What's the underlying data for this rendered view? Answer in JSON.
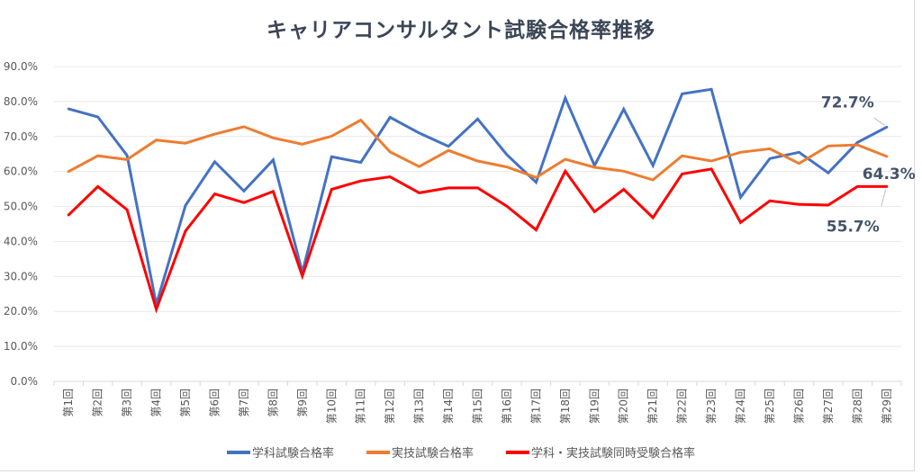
{
  "chart_data": {
    "type": "line",
    "title": "キャリアコンサルタント試験合格率推移",
    "xlabel": "",
    "ylabel": "",
    "ylim": [
      0,
      90
    ],
    "yticks": [
      "0.0%",
      "10.0%",
      "20.0%",
      "30.0%",
      "40.0%",
      "50.0%",
      "60.0%",
      "70.0%",
      "80.0%",
      "90.0%"
    ],
    "ytick_values": [
      0,
      10,
      20,
      30,
      40,
      50,
      60,
      70,
      80,
      90
    ],
    "grid": true,
    "legend_position": "bottom",
    "categories": [
      "第1回",
      "第2回",
      "第3回",
      "第4回",
      "第5回",
      "第6回",
      "第7回",
      "第8回",
      "第9回",
      "第10回",
      "第11回",
      "第12回",
      "第13回",
      "第14回",
      "第15回",
      "第16回",
      "第17回",
      "第18回",
      "第19回",
      "第20回",
      "第21回",
      "第22回",
      "第23回",
      "第24回",
      "第25回",
      "第26回",
      "第27回",
      "第28回",
      "第29回"
    ],
    "series": [
      {
        "name": "学科試験合格率",
        "color": "#4472c4",
        "values": [
          77.9,
          75.6,
          64.6,
          22.0,
          50.3,
          62.8,
          54.4,
          63.3,
          31.2,
          64.2,
          62.6,
          75.5,
          71.0,
          67.2,
          75.0,
          64.8,
          56.9,
          81.0,
          61.7,
          77.8,
          61.7,
          82.2,
          83.5,
          52.6,
          63.7,
          65.5,
          59.6,
          68.3,
          72.7
        ],
        "end_label": "72.7%"
      },
      {
        "name": "実技試験合格率",
        "color": "#ed7d31",
        "values": [
          60.0,
          64.5,
          63.4,
          69.0,
          68.1,
          70.7,
          72.8,
          69.6,
          67.8,
          70.1,
          74.7,
          65.6,
          61.4,
          66.0,
          63.0,
          61.3,
          58.3,
          63.5,
          61.2,
          60.1,
          57.6,
          64.5,
          63.0,
          65.5,
          66.5,
          62.3,
          67.3,
          67.6,
          64.3
        ],
        "end_label": "64.3%"
      },
      {
        "name": "学科・実技試験同時受験合格率",
        "color": "#ff0000",
        "values": [
          47.6,
          55.7,
          49.1,
          20.6,
          43.0,
          53.6,
          51.1,
          54.3,
          30.1,
          54.9,
          57.3,
          58.5,
          53.9,
          55.3,
          55.3,
          50.1,
          43.3,
          60.1,
          48.5,
          54.9,
          46.8,
          59.3,
          60.7,
          45.4,
          51.6,
          50.6,
          50.4,
          55.7,
          55.7
        ],
        "end_label": "55.7%"
      }
    ]
  }
}
